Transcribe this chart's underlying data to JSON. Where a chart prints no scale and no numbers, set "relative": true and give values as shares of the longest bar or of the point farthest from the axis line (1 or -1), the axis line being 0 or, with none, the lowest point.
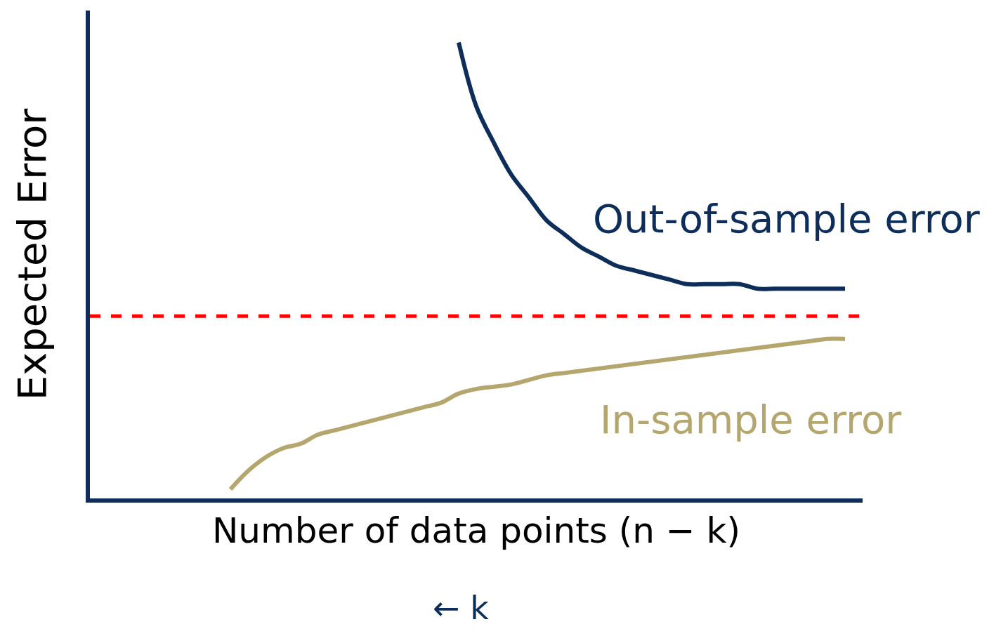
{
  "chart_data": {
    "type": "line",
    "relative": true,
    "xlabel": "Number of data points (n − k)",
    "ylabel": "Expected Error",
    "annotations": [
      "← k"
    ],
    "categories": [
      null,
      null,
      null,
      null,
      null,
      null,
      null,
      null,
      null,
      null,
      null,
      null,
      null,
      null,
      null,
      null,
      null,
      null,
      null,
      null,
      null,
      null,
      null,
      null,
      null,
      null,
      null,
      null,
      null,
      null,
      null,
      null,
      null,
      null,
      null,
      null,
      null,
      null,
      null,
      null,
      null,
      null,
      null,
      null,
      null
    ],
    "series": [
      {
        "name": "Out-of-sample error",
        "color": "#0d2d5a",
        "values": [
          null,
          null,
          null,
          null,
          null,
          null,
          null,
          null,
          null,
          null,
          null,
          null,
          null,
          null,
          null,
          null,
          null,
          null,
          null,
          null,
          null,
          1.0,
          0.86,
          0.78,
          0.71,
          0.66,
          0.61,
          0.58,
          0.55,
          0.53,
          0.51,
          0.5,
          0.49,
          0.48,
          0.47,
          0.47,
          0.47,
          0.47,
          0.46,
          0.46,
          0.46,
          0.46,
          0.46,
          0.46,
          null
        ]
      },
      {
        "name": "In-sample error",
        "color": "#b5a66e",
        "values": [
          null,
          null,
          null,
          null,
          null,
          null,
          null,
          null,
          0.02,
          0.06,
          0.09,
          0.11,
          0.12,
          0.14,
          0.15,
          0.16,
          0.17,
          0.18,
          0.19,
          0.2,
          0.21,
          0.23,
          0.24,
          0.245,
          0.25,
          0.26,
          0.27,
          0.275,
          0.28,
          0.285,
          0.29,
          0.295,
          0.3,
          0.305,
          0.31,
          0.315,
          0.32,
          0.325,
          0.33,
          0.335,
          0.34,
          0.345,
          0.35,
          0.35,
          null
        ]
      }
    ],
    "ref_lines": [
      {
        "axis": "y",
        "value": 0.4,
        "color": "#ff0000",
        "line_style": "dashed"
      }
    ],
    "legend": false,
    "line_style": "solid",
    "marker": "none"
  }
}
